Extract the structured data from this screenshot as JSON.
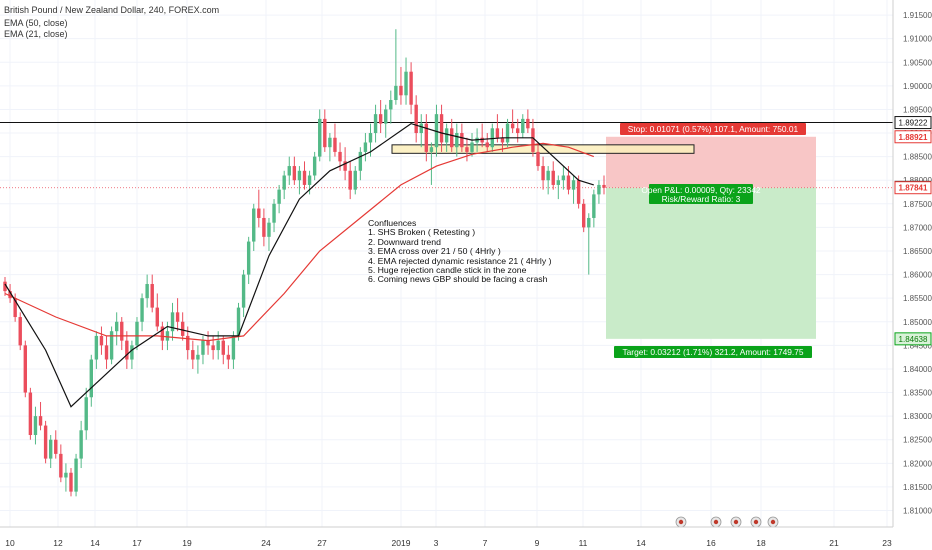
{
  "header": {
    "symbol_line": "British Pound / New Zealand Dollar, 240, FOREX.com",
    "indicator_1": "EMA (50, close)",
    "indicator_2": "EMA (21, close)"
  },
  "notes": {
    "title": "Confluences",
    "items": [
      "1. SHS Broken ( Retesting )",
      "2. Downward trend",
      "3. EMA cross over 21 / 50 ( 4Hrly )",
      "4. EMA rejected dynamic resistance 21 ( 4Hrly )",
      "5. Huge rejection candle stick in the zone",
      "6. Coming news GBP should be facing a crash"
    ]
  },
  "position": {
    "stop_label": "Stop: 0.01071 (0.57%) 107.1, Amount: 750.01",
    "open_label": "Open P&L: 0.00009, Qty: 23342",
    "rr_label": "Risk/Reward Ratio: 3",
    "target_label": "Target: 0.03212 (1.71%) 321.2, Amount: 1749.75"
  },
  "colors": {
    "up": "#53b987",
    "down": "#eb4d5c",
    "ema50": "#e53935",
    "ema21": "#111111",
    "stop_zone": "#f8c6c6",
    "target_zone": "#c9ebc9",
    "stop_badge": "#e53935",
    "target_badge": "#0aa31a",
    "zone_box": "#fbeebb"
  },
  "chart_data": {
    "type": "candlestick",
    "title": "British Pound / New Zealand Dollar, 240, FOREX.com",
    "ylim": [
      1.805,
      1.918
    ],
    "y_ticks": [
      "1.91500",
      "1.91000",
      "1.90500",
      "1.90000",
      "1.89500",
      "1.89000",
      "1.88500",
      "1.88000",
      "1.87500",
      "1.87000",
      "1.86500",
      "1.86000",
      "1.85500",
      "1.85000",
      "1.84500",
      "1.84000",
      "1.83500",
      "1.83000",
      "1.82500",
      "1.82000",
      "1.81500",
      "1.81000"
    ],
    "x_ticks": [
      "10",
      "12",
      "14",
      "17",
      "19",
      "24",
      "27",
      "2019",
      "3",
      "7",
      "9",
      "11",
      "14",
      "16",
      "18",
      "21",
      "23"
    ],
    "price_labels": [
      {
        "label": "1.89222",
        "value": 1.89222,
        "style": "black"
      },
      {
        "label": "1.88921",
        "value": 1.88921,
        "style": "red"
      },
      {
        "label": "1.87850",
        "value": 1.8785,
        "style": "dark"
      },
      {
        "label": "1.87841",
        "value": 1.87841,
        "style": "red"
      },
      {
        "label": "1.84638",
        "value": 1.84638,
        "style": "green"
      }
    ],
    "horizontal_line": 1.89222,
    "entry_line": 1.87841,
    "stop_level": 1.88921,
    "target_level": 1.84638,
    "zone": {
      "top": 1.8875,
      "bottom": 1.8857
    },
    "ohlc": [
      [
        1.8585,
        1.8595,
        1.8555,
        1.8565
      ],
      [
        1.8565,
        1.858,
        1.854,
        1.855
      ],
      [
        1.855,
        1.856,
        1.85,
        1.851
      ],
      [
        1.851,
        1.852,
        1.844,
        1.845
      ],
      [
        1.845,
        1.846,
        1.834,
        1.835
      ],
      [
        1.835,
        1.836,
        1.825,
        1.826
      ],
      [
        1.826,
        1.832,
        1.824,
        1.83
      ],
      [
        1.83,
        1.833,
        1.827,
        1.828
      ],
      [
        1.828,
        1.829,
        1.82,
        1.821
      ],
      [
        1.821,
        1.826,
        1.819,
        1.825
      ],
      [
        1.825,
        1.827,
        1.821,
        1.822
      ],
      [
        1.822,
        1.824,
        1.816,
        1.817
      ],
      [
        1.817,
        1.82,
        1.814,
        1.818
      ],
      [
        1.818,
        1.819,
        1.813,
        1.814
      ],
      [
        1.814,
        1.822,
        1.813,
        1.821
      ],
      [
        1.821,
        1.829,
        1.819,
        1.827
      ],
      [
        1.827,
        1.836,
        1.825,
        1.834
      ],
      [
        1.834,
        1.843,
        1.832,
        1.842
      ],
      [
        1.842,
        1.848,
        1.84,
        1.847
      ],
      [
        1.847,
        1.849,
        1.843,
        1.845
      ],
      [
        1.845,
        1.847,
        1.84,
        1.842
      ],
      [
        1.842,
        1.849,
        1.841,
        1.848
      ],
      [
        1.848,
        1.852,
        1.845,
        1.85
      ],
      [
        1.85,
        1.851,
        1.844,
        1.846
      ],
      [
        1.846,
        1.848,
        1.84,
        1.842
      ],
      [
        1.842,
        1.846,
        1.84,
        1.845
      ],
      [
        1.845,
        1.851,
        1.844,
        1.85
      ],
      [
        1.85,
        1.856,
        1.848,
        1.855
      ],
      [
        1.855,
        1.86,
        1.853,
        1.858
      ],
      [
        1.858,
        1.86,
        1.852,
        1.853
      ],
      [
        1.853,
        1.856,
        1.848,
        1.849
      ],
      [
        1.849,
        1.85,
        1.844,
        1.846
      ],
      [
        1.846,
        1.85,
        1.844,
        1.848
      ],
      [
        1.848,
        1.854,
        1.846,
        1.852
      ],
      [
        1.852,
        1.855,
        1.848,
        1.85
      ],
      [
        1.85,
        1.852,
        1.846,
        1.847
      ],
      [
        1.847,
        1.849,
        1.842,
        1.844
      ],
      [
        1.844,
        1.846,
        1.84,
        1.842
      ],
      [
        1.842,
        1.845,
        1.839,
        1.843
      ],
      [
        1.843,
        1.847,
        1.841,
        1.846
      ],
      [
        1.846,
        1.848,
        1.843,
        1.845
      ],
      [
        1.845,
        1.847,
        1.842,
        1.844
      ],
      [
        1.844,
        1.848,
        1.842,
        1.846
      ],
      [
        1.846,
        1.847,
        1.841,
        1.843
      ],
      [
        1.843,
        1.845,
        1.84,
        1.842
      ],
      [
        1.842,
        1.848,
        1.84,
        1.847
      ],
      [
        1.847,
        1.854,
        1.846,
        1.853
      ],
      [
        1.853,
        1.861,
        1.851,
        1.86
      ],
      [
        1.86,
        1.868,
        1.858,
        1.867
      ],
      [
        1.867,
        1.875,
        1.865,
        1.874
      ],
      [
        1.874,
        1.878,
        1.87,
        1.872
      ],
      [
        1.872,
        1.874,
        1.866,
        1.868
      ],
      [
        1.868,
        1.872,
        1.865,
        1.871
      ],
      [
        1.871,
        1.876,
        1.869,
        1.875
      ],
      [
        1.875,
        1.879,
        1.873,
        1.878
      ],
      [
        1.878,
        1.882,
        1.876,
        1.881
      ],
      [
        1.881,
        1.885,
        1.879,
        1.883
      ],
      [
        1.883,
        1.885,
        1.879,
        1.88
      ],
      [
        1.88,
        1.883,
        1.877,
        1.882
      ],
      [
        1.882,
        1.884,
        1.878,
        1.879
      ],
      [
        1.879,
        1.882,
        1.877,
        1.881
      ],
      [
        1.881,
        1.886,
        1.88,
        1.885
      ],
      [
        1.885,
        1.895,
        1.884,
        1.893
      ],
      [
        1.893,
        1.895,
        1.886,
        1.887
      ],
      [
        1.887,
        1.89,
        1.884,
        1.889
      ],
      [
        1.889,
        1.892,
        1.885,
        1.886
      ],
      [
        1.886,
        1.888,
        1.882,
        1.884
      ],
      [
        1.884,
        1.887,
        1.88,
        1.882
      ],
      [
        1.882,
        1.884,
        1.876,
        1.878
      ],
      [
        1.878,
        1.883,
        1.877,
        1.882
      ],
      [
        1.882,
        1.887,
        1.88,
        1.886
      ],
      [
        1.886,
        1.89,
        1.884,
        1.888
      ],
      [
        1.888,
        1.892,
        1.885,
        1.89
      ],
      [
        1.89,
        1.896,
        1.888,
        1.894
      ],
      [
        1.894,
        1.897,
        1.89,
        1.892
      ],
      [
        1.892,
        1.896,
        1.889,
        1.895
      ],
      [
        1.895,
        1.899,
        1.892,
        1.897
      ],
      [
        1.897,
        1.912,
        1.896,
        1.9
      ],
      [
        1.9,
        1.904,
        1.896,
        1.898
      ],
      [
        1.898,
        1.906,
        1.896,
        1.903
      ],
      [
        1.903,
        1.905,
        1.894,
        1.896
      ],
      [
        1.896,
        1.898,
        1.888,
        1.89
      ],
      [
        1.89,
        1.894,
        1.887,
        1.892
      ],
      [
        1.892,
        1.894,
        1.884,
        1.886
      ],
      [
        1.886,
        1.888,
        1.879,
        1.887
      ],
      [
        1.887,
        1.896,
        1.885,
        1.894
      ],
      [
        1.894,
        1.896,
        1.886,
        1.888
      ],
      [
        1.888,
        1.892,
        1.886,
        1.891
      ],
      [
        1.891,
        1.893,
        1.886,
        1.887
      ],
      [
        1.887,
        1.892,
        1.885,
        1.89
      ],
      [
        1.89,
        1.892,
        1.886,
        1.887
      ],
      [
        1.887,
        1.889,
        1.884,
        1.886
      ],
      [
        1.886,
        1.89,
        1.885,
        1.888
      ],
      [
        1.888,
        1.891,
        1.886,
        1.889
      ],
      [
        1.889,
        1.892,
        1.887,
        1.888
      ],
      [
        1.888,
        1.89,
        1.886,
        1.887
      ],
      [
        1.887,
        1.892,
        1.886,
        1.891
      ],
      [
        1.891,
        1.894,
        1.888,
        1.889
      ],
      [
        1.889,
        1.891,
        1.886,
        1.888
      ],
      [
        1.888,
        1.893,
        1.887,
        1.892
      ],
      [
        1.892,
        1.895,
        1.89,
        1.891
      ],
      [
        1.891,
        1.893,
        1.888,
        1.89
      ],
      [
        1.89,
        1.894,
        1.889,
        1.893
      ],
      [
        1.893,
        1.895,
        1.89,
        1.891
      ],
      [
        1.891,
        1.893,
        1.885,
        1.886
      ],
      [
        1.886,
        1.888,
        1.882,
        1.883
      ],
      [
        1.883,
        1.885,
        1.878,
        1.88
      ],
      [
        1.88,
        1.883,
        1.877,
        1.882
      ],
      [
        1.882,
        1.884,
        1.878,
        1.879
      ],
      [
        1.879,
        1.881,
        1.876,
        1.88
      ],
      [
        1.88,
        1.883,
        1.878,
        1.881
      ],
      [
        1.881,
        1.883,
        1.877,
        1.878
      ],
      [
        1.878,
        1.881,
        1.875,
        1.88
      ],
      [
        1.88,
        1.881,
        1.874,
        1.875
      ],
      [
        1.875,
        1.876,
        1.869,
        1.87
      ],
      [
        1.87,
        1.873,
        1.86,
        1.872
      ],
      [
        1.872,
        1.878,
        1.87,
        1.877
      ],
      [
        1.877,
        1.88,
        1.875,
        1.879
      ],
      [
        1.879,
        1.881,
        1.877,
        1.8784
      ]
    ],
    "ema50": [
      [
        0,
        1.856
      ],
      [
        10,
        1.851
      ],
      [
        20,
        1.847
      ],
      [
        30,
        1.847
      ],
      [
        40,
        1.846
      ],
      [
        47,
        1.847
      ],
      [
        55,
        1.856
      ],
      [
        62,
        1.865
      ],
      [
        70,
        1.872
      ],
      [
        78,
        1.879
      ],
      [
        85,
        1.883
      ],
      [
        92,
        1.8855
      ],
      [
        100,
        1.887
      ],
      [
        106,
        1.8878
      ],
      [
        111,
        1.887
      ],
      [
        116,
        1.885
      ]
    ],
    "ema21": [
      [
        0,
        1.858
      ],
      [
        8,
        1.844
      ],
      [
        13,
        1.832
      ],
      [
        18,
        1.837
      ],
      [
        25,
        1.844
      ],
      [
        32,
        1.849
      ],
      [
        40,
        1.847
      ],
      [
        46,
        1.847
      ],
      [
        52,
        1.864
      ],
      [
        58,
        1.876
      ],
      [
        64,
        1.882
      ],
      [
        72,
        1.886
      ],
      [
        80,
        1.892
      ],
      [
        86,
        1.89
      ],
      [
        92,
        1.8885
      ],
      [
        98,
        1.889
      ],
      [
        104,
        1.889
      ],
      [
        108,
        1.885
      ],
      [
        113,
        1.88
      ],
      [
        116,
        1.879
      ]
    ]
  }
}
